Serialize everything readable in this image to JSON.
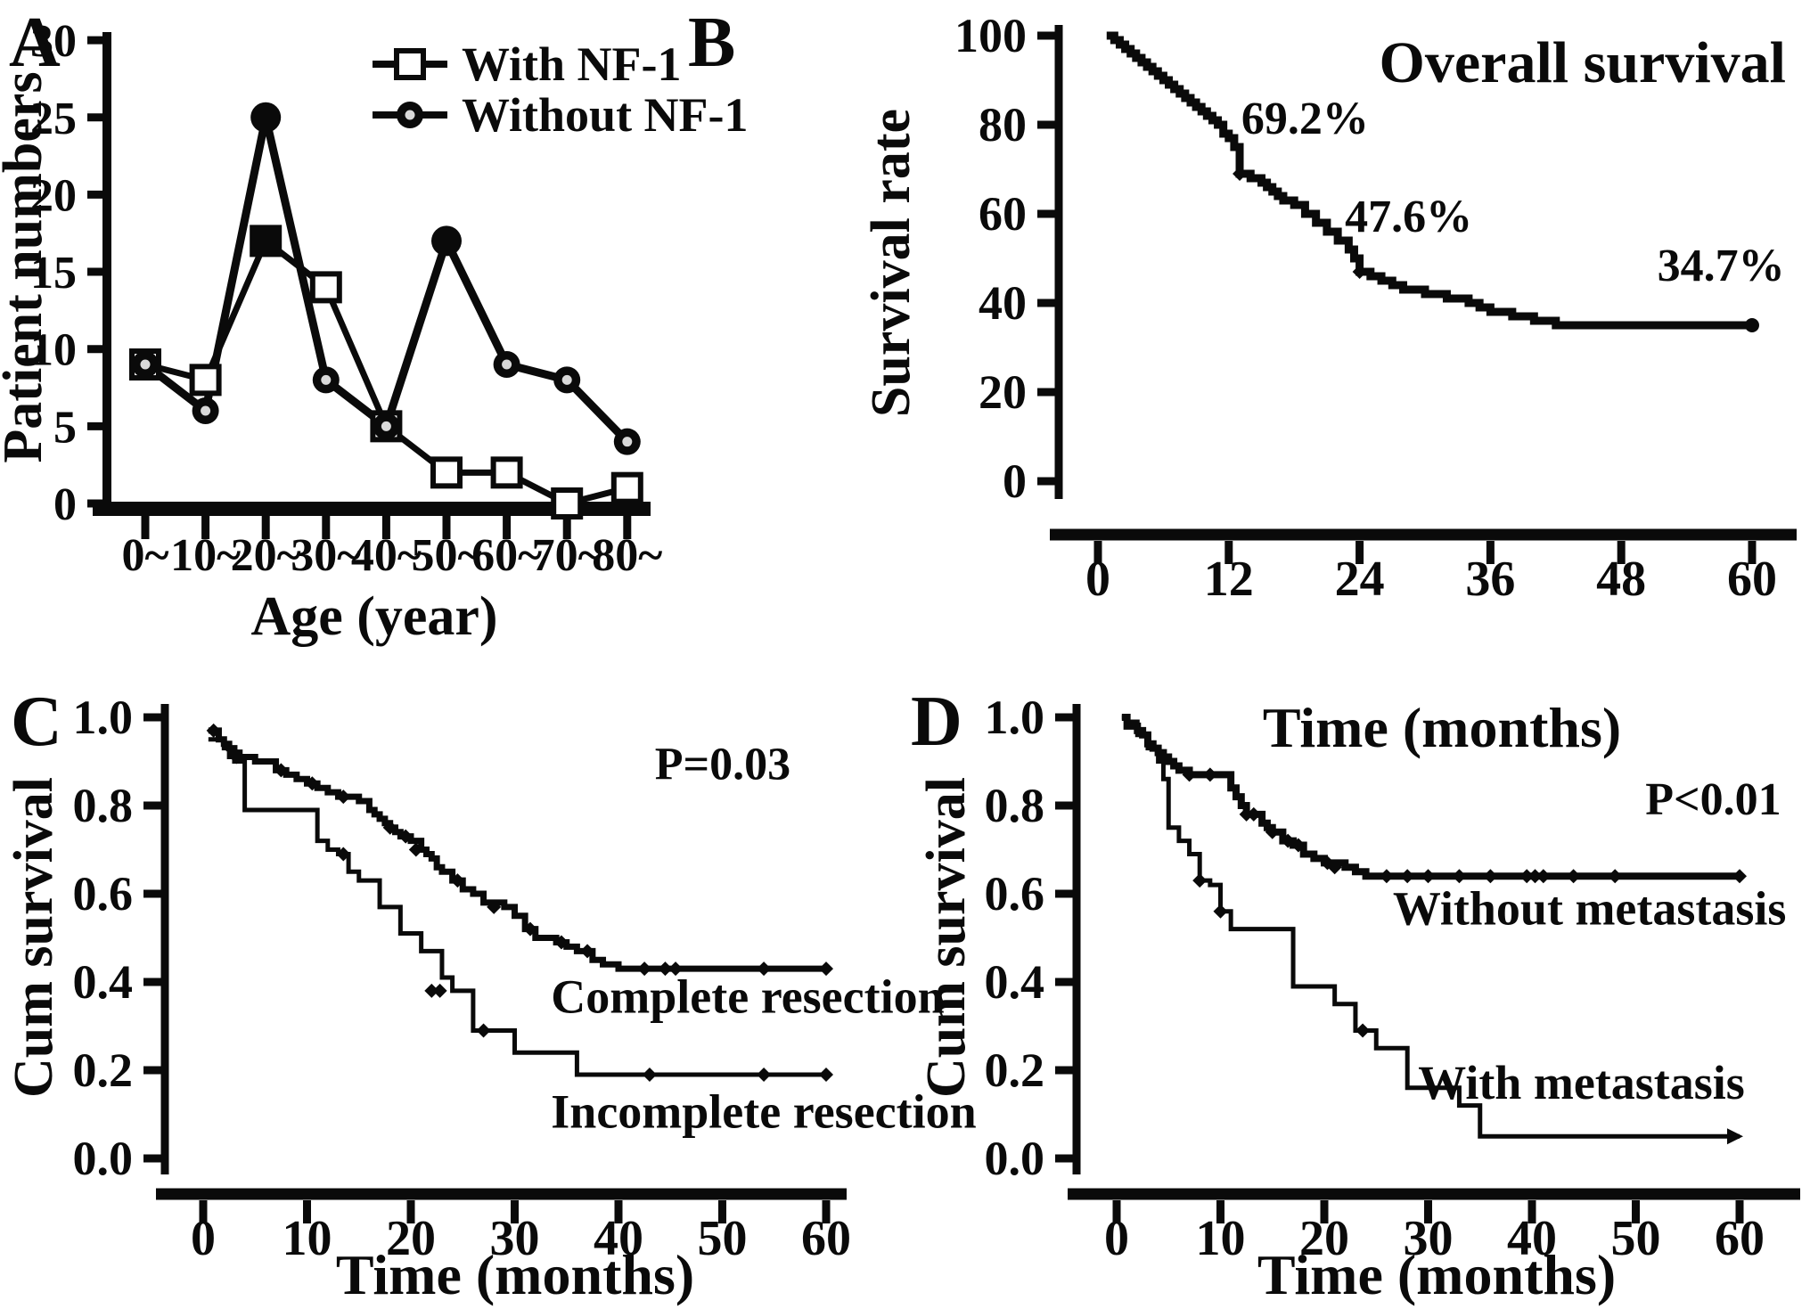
{
  "figure": {
    "background": "#ffffff",
    "ink": "#0a0a0a",
    "marker_inner_gray": "#d9d9d9"
  },
  "chart_data": [
    {
      "panel_label": "A",
      "type": "line",
      "xlabel": "Age (year)",
      "ylabel": "Patient numbers",
      "categories": [
        "0~",
        "10~",
        "20~",
        "30~",
        "40~",
        "50~",
        "60~",
        "70~",
        "80~"
      ],
      "y_ticks": [
        0,
        5,
        10,
        15,
        20,
        25,
        30
      ],
      "y_tick_labels": [
        "0",
        "5",
        "10",
        "15",
        "20",
        "25",
        "30"
      ],
      "ylim": [
        0,
        30
      ],
      "legend_position": "top-right",
      "series": [
        {
          "name": "With NF-1",
          "marker": "open-square",
          "values": [
            9,
            8,
            17,
            14,
            5,
            2,
            2,
            0,
            1
          ],
          "filled_marker_indices": [
            2
          ]
        },
        {
          "name": "Without NF-1",
          "marker": "ring-circle",
          "values": [
            9,
            6,
            25,
            8,
            5,
            17,
            9,
            8,
            4
          ],
          "filled_marker_indices": [
            2,
            5
          ]
        }
      ]
    },
    {
      "panel_label": "B",
      "type": "km_step",
      "title": "Overall survival",
      "xlabel": "Time (months)",
      "ylabel": "Survival rate",
      "x_ticks": [
        0,
        12,
        24,
        36,
        48,
        60
      ],
      "x_tick_labels": [
        "0",
        "12",
        "24",
        "36",
        "48",
        "60"
      ],
      "y_ticks": [
        0,
        20,
        40,
        60,
        80,
        100
      ],
      "y_tick_labels": [
        "0",
        "20",
        "40",
        "60",
        "80",
        "100"
      ],
      "xlim": [
        0,
        63
      ],
      "ylim": [
        0,
        100
      ],
      "series": [
        {
          "name": "Overall survival",
          "end_marker": "dot",
          "steps": [
            [
              0.8,
              100
            ],
            [
              1.5,
              99
            ],
            [
              2,
              98
            ],
            [
              2.5,
              97
            ],
            [
              3,
              96
            ],
            [
              3.5,
              95
            ],
            [
              4,
              94
            ],
            [
              4.5,
              93
            ],
            [
              5,
              92
            ],
            [
              5.5,
              91
            ],
            [
              6,
              90
            ],
            [
              6.5,
              89
            ],
            [
              7,
              88
            ],
            [
              7.5,
              87
            ],
            [
              8,
              86
            ],
            [
              8.5,
              85
            ],
            [
              9,
              84
            ],
            [
              9.5,
              83
            ],
            [
              10,
              82
            ],
            [
              10.5,
              81
            ],
            [
              11,
              80
            ],
            [
              11.5,
              78
            ],
            [
              12,
              77
            ],
            [
              12.5,
              75
            ],
            [
              13,
              69
            ],
            [
              14,
              68
            ],
            [
              15,
              67
            ],
            [
              15.5,
              66
            ],
            [
              16,
              65
            ],
            [
              16.5,
              64
            ],
            [
              17,
              63
            ],
            [
              18,
              62
            ],
            [
              19,
              60
            ],
            [
              20,
              58
            ],
            [
              21,
              56
            ],
            [
              22,
              54
            ],
            [
              23,
              52
            ],
            [
              23.5,
              50
            ],
            [
              24,
              47
            ],
            [
              25,
              46
            ],
            [
              26,
              45
            ],
            [
              27,
              44
            ],
            [
              28,
              43
            ],
            [
              30,
              42
            ],
            [
              32,
              41
            ],
            [
              34,
              40
            ],
            [
              35,
              39
            ],
            [
              36,
              38
            ],
            [
              38,
              37
            ],
            [
              40,
              36
            ],
            [
              42,
              35
            ],
            [
              60,
              35
            ]
          ],
          "censor_marks": [
            [
              13,
              69
            ],
            [
              24,
              47
            ]
          ]
        }
      ],
      "annotations": [
        {
          "text": "69.2%",
          "x": 19,
          "y": 78,
          "anchor": "middle"
        },
        {
          "text": "47.6%",
          "x": 28.5,
          "y": 56,
          "anchor": "middle"
        },
        {
          "text": "34.7%",
          "x": 63,
          "y": 45,
          "anchor": "end"
        }
      ]
    },
    {
      "panel_label": "C",
      "type": "km_step",
      "xlabel": "Time (months)",
      "ylabel": "Cum survival",
      "x_ticks": [
        0,
        10,
        20,
        30,
        40,
        50,
        60
      ],
      "x_tick_labels": [
        "0",
        "10",
        "20",
        "30",
        "40",
        "50",
        "60"
      ],
      "y_ticks": [
        0,
        0.2,
        0.4,
        0.6,
        0.8,
        1.0
      ],
      "y_tick_labels": [
        "0.0",
        "0.2",
        "0.4",
        "0.6",
        "0.8",
        "1.0"
      ],
      "xlim": [
        0,
        63
      ],
      "ylim": [
        0,
        1
      ],
      "series": [
        {
          "name": "Complete resection",
          "end_marker": "diamond",
          "steps": [
            [
              0.5,
              0.97
            ],
            [
              1.5,
              0.95
            ],
            [
              2,
              0.94
            ],
            [
              2.5,
              0.93
            ],
            [
              3,
              0.92
            ],
            [
              3.5,
              0.91
            ],
            [
              5,
              0.9
            ],
            [
              7,
              0.88
            ],
            [
              8,
              0.87
            ],
            [
              9,
              0.86
            ],
            [
              10,
              0.85
            ],
            [
              11,
              0.84
            ],
            [
              12,
              0.83
            ],
            [
              13,
              0.82
            ],
            [
              15,
              0.81
            ],
            [
              16,
              0.79
            ],
            [
              16.5,
              0.78
            ],
            [
              17,
              0.77
            ],
            [
              17.5,
              0.76
            ],
            [
              18,
              0.75
            ],
            [
              18.5,
              0.74
            ],
            [
              19,
              0.73
            ],
            [
              20,
              0.72
            ],
            [
              21,
              0.7
            ],
            [
              21.5,
              0.69
            ],
            [
              22,
              0.68
            ],
            [
              22.5,
              0.66
            ],
            [
              23,
              0.65
            ],
            [
              24,
              0.63
            ],
            [
              25,
              0.61
            ],
            [
              26,
              0.6
            ],
            [
              27,
              0.58
            ],
            [
              29,
              0.57
            ],
            [
              30,
              0.55
            ],
            [
              31,
              0.52
            ],
            [
              32,
              0.5
            ],
            [
              34,
              0.49
            ],
            [
              35,
              0.48
            ],
            [
              36,
              0.47
            ],
            [
              37.5,
              0.45
            ],
            [
              38.5,
              0.44
            ],
            [
              40,
              0.43
            ],
            [
              60,
              0.43
            ]
          ],
          "censor_marks": [
            [
              1,
              0.97
            ],
            [
              3.2,
              0.91
            ],
            [
              7.5,
              0.88
            ],
            [
              10.5,
              0.85
            ],
            [
              13.5,
              0.82
            ],
            [
              18,
              0.75
            ],
            [
              19.5,
              0.73
            ],
            [
              20.5,
              0.7
            ],
            [
              24.5,
              0.63
            ],
            [
              28,
              0.57
            ],
            [
              31.5,
              0.52
            ],
            [
              34.5,
              0.49
            ],
            [
              37,
              0.47
            ],
            [
              42.5,
              0.43
            ],
            [
              44.5,
              0.43
            ],
            [
              45.5,
              0.43
            ],
            [
              54,
              0.43
            ]
          ]
        },
        {
          "name": "Incomplete resection",
          "end_marker": "diamond",
          "steps": [
            [
              0.5,
              0.95
            ],
            [
              2,
              0.93
            ],
            [
              2.5,
              0.91
            ],
            [
              3,
              0.9
            ],
            [
              4,
              0.79
            ],
            [
              11,
              0.72
            ],
            [
              12,
              0.7
            ],
            [
              13,
              0.69
            ],
            [
              14,
              0.65
            ],
            [
              15,
              0.63
            ],
            [
              17,
              0.57
            ],
            [
              19,
              0.51
            ],
            [
              21,
              0.47
            ],
            [
              23,
              0.41
            ],
            [
              24,
              0.38
            ],
            [
              26,
              0.29
            ],
            [
              30,
              0.24
            ],
            [
              36,
              0.19
            ],
            [
              60,
              0.19
            ]
          ],
          "censor_marks": [
            [
              13.5,
              0.69
            ],
            [
              22,
              0.38
            ],
            [
              22.8,
              0.38
            ],
            [
              27,
              0.29
            ],
            [
              43,
              0.19
            ],
            [
              54,
              0.19
            ]
          ]
        }
      ],
      "annotations": [
        {
          "text": "P=0.03",
          "x": 43.5,
          "y": 0.86,
          "anchor": "start"
        },
        {
          "text": "Complete resection",
          "x": 33.5,
          "y": 0.33,
          "anchor": "start"
        },
        {
          "text": "Incomplete resection",
          "x": 33.5,
          "y": 0.07,
          "anchor": "start"
        }
      ]
    },
    {
      "panel_label": "D",
      "type": "km_step",
      "xlabel": "Time (months)",
      "ylabel": "Cum survival",
      "x_ticks": [
        0,
        10,
        20,
        30,
        40,
        50,
        60
      ],
      "x_tick_labels": [
        "0",
        "10",
        "20",
        "30",
        "40",
        "50",
        "60"
      ],
      "y_ticks": [
        0,
        0.2,
        0.4,
        0.6,
        0.8,
        1.0
      ],
      "y_tick_labels": [
        "0.0",
        "0.2",
        "0.4",
        "0.6",
        "0.8",
        "1.0"
      ],
      "xlim": [
        0,
        63
      ],
      "ylim": [
        0,
        1
      ],
      "series": [
        {
          "name": "Without metastasis",
          "end_marker": "diamond",
          "steps": [
            [
              0.5,
              1
            ],
            [
              1,
              0.98
            ],
            [
              2,
              0.97
            ],
            [
              2.5,
              0.96
            ],
            [
              3,
              0.94
            ],
            [
              3.5,
              0.93
            ],
            [
              4,
              0.92
            ],
            [
              4.5,
              0.91
            ],
            [
              5,
              0.9
            ],
            [
              5.5,
              0.89
            ],
            [
              6,
              0.88
            ],
            [
              7,
              0.87
            ],
            [
              11,
              0.84
            ],
            [
              11.5,
              0.82
            ],
            [
              12,
              0.8
            ],
            [
              12.5,
              0.78
            ],
            [
              14,
              0.76
            ],
            [
              14.5,
              0.75
            ],
            [
              15,
              0.74
            ],
            [
              16,
              0.72
            ],
            [
              17,
              0.71
            ],
            [
              18,
              0.69
            ],
            [
              19,
              0.68
            ],
            [
              20,
              0.67
            ],
            [
              22,
              0.66
            ],
            [
              23,
              0.65
            ],
            [
              24,
              0.64
            ],
            [
              60,
              0.64
            ]
          ],
          "censor_marks": [
            [
              7,
              0.87
            ],
            [
              9,
              0.87
            ],
            [
              12.5,
              0.78
            ],
            [
              13.2,
              0.78
            ],
            [
              15,
              0.74
            ],
            [
              16.5,
              0.72
            ],
            [
              17.5,
              0.71
            ],
            [
              20.3,
              0.67
            ],
            [
              21,
              0.66
            ],
            [
              26,
              0.64
            ],
            [
              28,
              0.64
            ],
            [
              30,
              0.64
            ],
            [
              33,
              0.64
            ],
            [
              36,
              0.64
            ],
            [
              39.5,
              0.64
            ],
            [
              40.3,
              0.64
            ],
            [
              41.1,
              0.64
            ],
            [
              44,
              0.64
            ],
            [
              48,
              0.64
            ]
          ]
        },
        {
          "name": "With metastasis",
          "end_marker": "arrow",
          "steps": [
            [
              0.5,
              1
            ],
            [
              1,
              0.99
            ],
            [
              2,
              0.96
            ],
            [
              3,
              0.93
            ],
            [
              4,
              0.9
            ],
            [
              4.5,
              0.86
            ],
            [
              5,
              0.75
            ],
            [
              6,
              0.72
            ],
            [
              7,
              0.69
            ],
            [
              8,
              0.63
            ],
            [
              9,
              0.62
            ],
            [
              10,
              0.56
            ],
            [
              11,
              0.52
            ],
            [
              17,
              0.39
            ],
            [
              21,
              0.35
            ],
            [
              23,
              0.29
            ],
            [
              25,
              0.25
            ],
            [
              28,
              0.16
            ],
            [
              33,
              0.12
            ],
            [
              35,
              0.05
            ],
            [
              60,
              0.05
            ]
          ],
          "censor_marks": [
            [
              8,
              0.63
            ],
            [
              10,
              0.56
            ],
            [
              23.7,
              0.29
            ]
          ]
        }
      ],
      "annotations": [
        {
          "text": "P<0.01",
          "x": 64,
          "y": 0.78,
          "anchor": "end"
        },
        {
          "text": "Without metastasis",
          "x": 64.5,
          "y": 0.53,
          "anchor": "end"
        },
        {
          "text": "With metastasis",
          "x": 60.5,
          "y": 0.135,
          "anchor": "end"
        }
      ]
    }
  ]
}
